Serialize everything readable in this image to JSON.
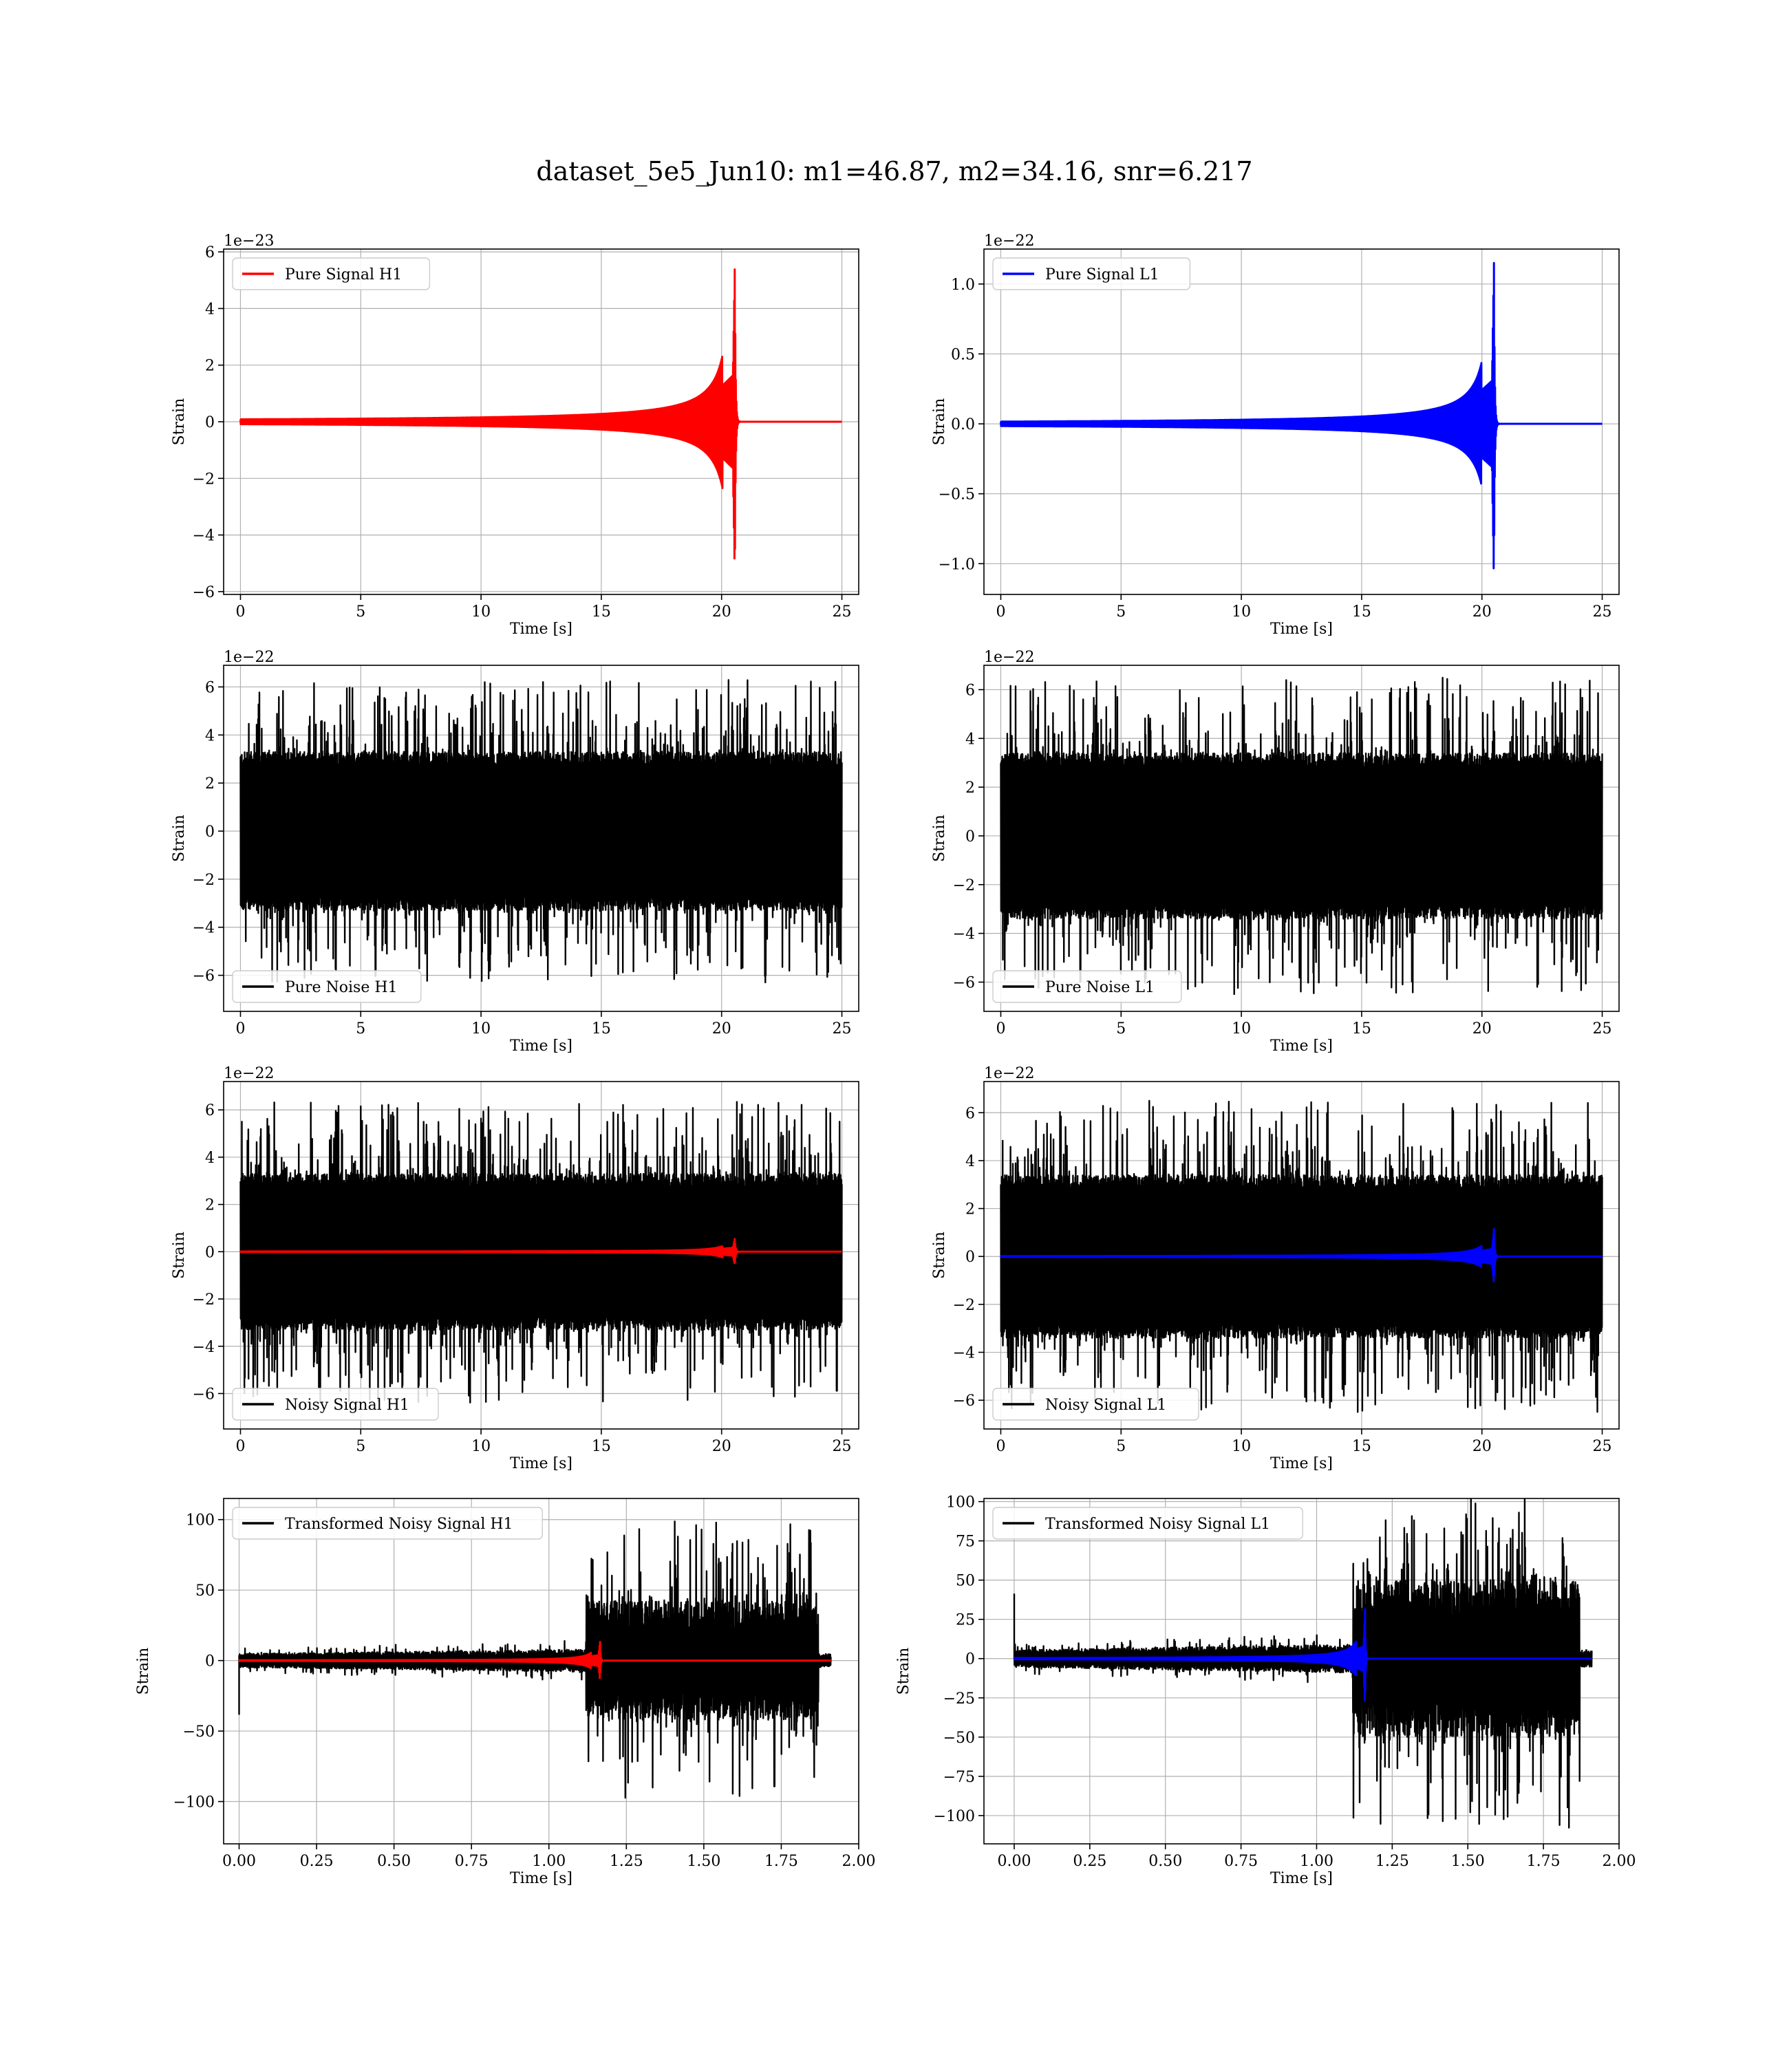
{
  "figure": {
    "title": "dataset_5e5_Jun10: m1=46.87, m2=34.16, snr=6.217"
  },
  "chart_data": [
    {
      "type": "line",
      "legend": "Pure Signal H1",
      "legend_position": "upper left",
      "xlabel": "Time [s]",
      "ylabel": "Strain",
      "offset_text": "1e−23",
      "xlim": [
        -0.7,
        25.7
      ],
      "ylim": [
        -6.1,
        6.1
      ],
      "xticks": [
        0,
        5,
        10,
        15,
        20,
        25
      ],
      "xtick_labels": [
        "0",
        "5",
        "10",
        "15",
        "20",
        "25"
      ],
      "yticks": [
        -6,
        -4,
        -2,
        0,
        2,
        4,
        6
      ],
      "ytick_labels": [
        "−6",
        "−4",
        "−2",
        "0",
        "2",
        "4",
        "6"
      ],
      "grid": true,
      "series": [
        {
          "name": "Pure Signal H1",
          "color": "#ff0000",
          "kind": "chirp",
          "t_start": 0,
          "t_merge": 20.55,
          "t_end": 25,
          "peak": 5.6,
          "plateau": 1.7,
          "noise": 0
        }
      ]
    },
    {
      "type": "line",
      "legend": "Pure Signal L1",
      "legend_position": "upper left",
      "xlabel": "Time [s]",
      "ylabel": "Strain",
      "offset_text": "1e−22",
      "xlim": [
        -0.7,
        25.7
      ],
      "ylim": [
        -1.22,
        1.25
      ],
      "xticks": [
        0,
        5,
        10,
        15,
        20,
        25
      ],
      "xtick_labels": [
        "0",
        "5",
        "10",
        "15",
        "20",
        "25"
      ],
      "yticks": [
        -1.0,
        -0.5,
        0.0,
        0.5,
        1.0
      ],
      "ytick_labels": [
        "−1.0",
        "−0.5",
        "0.0",
        "0.5",
        "1.0"
      ],
      "grid": true,
      "series": [
        {
          "name": "Pure Signal L1",
          "color": "#0000ff",
          "kind": "chirp",
          "t_start": 0,
          "t_merge": 20.5,
          "t_end": 25,
          "peak": 1.15,
          "plateau": 0.32,
          "noise": 0
        }
      ]
    },
    {
      "type": "line",
      "legend": "Pure Noise H1",
      "legend_position": "lower left",
      "xlabel": "Time [s]",
      "ylabel": "Strain",
      "offset_text": "1e−22",
      "xlim": [
        -0.7,
        25.7
      ],
      "ylim": [
        -7.5,
        6.9
      ],
      "xticks": [
        0,
        5,
        10,
        15,
        20,
        25
      ],
      "xtick_labels": [
        "0",
        "5",
        "10",
        "15",
        "20",
        "25"
      ],
      "yticks": [
        -6,
        -4,
        -2,
        0,
        2,
        4,
        6
      ],
      "ytick_labels": [
        "−6",
        "−4",
        "−2",
        "0",
        "2",
        "4",
        "6"
      ],
      "grid": true,
      "series": [
        {
          "name": "Pure Noise H1",
          "color": "#000000",
          "kind": "noise",
          "t_start": 0,
          "t_end": 25,
          "core": 3.3,
          "spike_max": 6.3
        }
      ]
    },
    {
      "type": "line",
      "legend": "Pure Noise L1",
      "legend_position": "lower left",
      "xlabel": "Time [s]",
      "ylabel": "Strain",
      "offset_text": "1e−22",
      "xlim": [
        -0.7,
        25.7
      ],
      "ylim": [
        -7.2,
        7.0
      ],
      "xticks": [
        0,
        5,
        10,
        15,
        20,
        25
      ],
      "xtick_labels": [
        "0",
        "5",
        "10",
        "15",
        "20",
        "25"
      ],
      "yticks": [
        -6,
        -4,
        -2,
        0,
        2,
        4,
        6
      ],
      "ytick_labels": [
        "−6",
        "−4",
        "−2",
        "0",
        "2",
        "4",
        "6"
      ],
      "grid": true,
      "series": [
        {
          "name": "Pure Noise L1",
          "color": "#000000",
          "kind": "noise",
          "t_start": 0,
          "t_end": 25,
          "core": 3.4,
          "spike_max": 6.5
        }
      ]
    },
    {
      "type": "line",
      "legend": "Noisy Signal H1",
      "legend_position": "lower left",
      "xlabel": "Time [s]",
      "ylabel": "Strain",
      "offset_text": "1e−22",
      "xlim": [
        -0.7,
        25.7
      ],
      "ylim": [
        -7.5,
        7.2
      ],
      "xticks": [
        0,
        5,
        10,
        15,
        20,
        25
      ],
      "xtick_labels": [
        "0",
        "5",
        "10",
        "15",
        "20",
        "25"
      ],
      "yticks": [
        -6,
        -4,
        -2,
        0,
        2,
        4,
        6
      ],
      "ytick_labels": [
        "−6",
        "−4",
        "−2",
        "0",
        "2",
        "4",
        "6"
      ],
      "grid": true,
      "series": [
        {
          "name": "Noisy Signal H1",
          "color": "#000000",
          "kind": "noise",
          "t_start": 0,
          "t_end": 25,
          "core": 3.3,
          "spike_max": 6.4
        },
        {
          "name": "Pure Signal H1",
          "color": "#ff0000",
          "kind": "chirp",
          "t_start": 0,
          "t_merge": 20.55,
          "t_end": 25,
          "peak": 0.56,
          "plateau": 0.17,
          "noise": 0
        }
      ]
    },
    {
      "type": "line",
      "legend": "Noisy Signal L1",
      "legend_position": "lower left",
      "xlabel": "Time [s]",
      "ylabel": "Strain",
      "offset_text": "1e−22",
      "xlim": [
        -0.7,
        25.7
      ],
      "ylim": [
        -7.2,
        7.3
      ],
      "xticks": [
        0,
        5,
        10,
        15,
        20,
        25
      ],
      "xtick_labels": [
        "0",
        "5",
        "10",
        "15",
        "20",
        "25"
      ],
      "yticks": [
        -6,
        -4,
        -2,
        0,
        2,
        4,
        6
      ],
      "ytick_labels": [
        "−6",
        "−4",
        "−2",
        "0",
        "2",
        "4",
        "6"
      ],
      "grid": true,
      "series": [
        {
          "name": "Noisy Signal L1",
          "color": "#000000",
          "kind": "noise",
          "t_start": 0,
          "t_end": 25,
          "core": 3.4,
          "spike_max": 6.5
        },
        {
          "name": "Pure Signal L1",
          "color": "#0000ff",
          "kind": "chirp",
          "t_start": 0,
          "t_merge": 20.5,
          "t_end": 25,
          "peak": 1.15,
          "plateau": 0.32,
          "noise": 0
        }
      ]
    },
    {
      "type": "line",
      "legend": "Transformed Noisy Signal H1",
      "legend_position": "upper left",
      "xlabel": "Time [s]",
      "ylabel": "Strain",
      "offset_text": "",
      "xlim": [
        -0.05,
        2.0
      ],
      "ylim": [
        -130,
        115
      ],
      "xticks": [
        0.0,
        0.25,
        0.5,
        0.75,
        1.0,
        1.25,
        1.5,
        1.75,
        2.0
      ],
      "xtick_labels": [
        "0.00",
        "0.25",
        "0.50",
        "0.75",
        "1.00",
        "1.25",
        "1.50",
        "1.75",
        "2.00"
      ],
      "yticks": [
        -100,
        -50,
        0,
        50,
        100
      ],
      "ytick_labels": [
        "−100",
        "−50",
        "0",
        "50",
        "100"
      ],
      "grid": true,
      "series": [
        {
          "name": "Transformed Noisy Signal H1",
          "color": "#000000",
          "kind": "transformed",
          "t_start": 0,
          "t_step": 1.12,
          "t_end": 1.87,
          "t_tail": 1.91,
          "low": 8,
          "high": 42,
          "spike_max": 100,
          "start_spike": -38
        },
        {
          "name": "Pure Signal H1",
          "color": "#ff0000",
          "kind": "chirp",
          "t_start": 0,
          "t_merge": 1.165,
          "t_end": 1.91,
          "peak": 14,
          "plateau": 4,
          "noise": 0
        }
      ]
    },
    {
      "type": "line",
      "legend": "Transformed Noisy Signal L1",
      "legend_position": "upper left",
      "xlabel": "Time [s]",
      "ylabel": "Strain",
      "offset_text": "",
      "xlim": [
        -0.1,
        2.0
      ],
      "ylim": [
        -118,
        102
      ],
      "xticks": [
        0.0,
        0.25,
        0.5,
        0.75,
        1.0,
        1.25,
        1.5,
        1.75,
        2.0
      ],
      "xtick_labels": [
        "0.00",
        "0.25",
        "0.50",
        "0.75",
        "1.00",
        "1.25",
        "1.50",
        "1.75",
        "2.00"
      ],
      "yticks": [
        -100,
        -75,
        -50,
        -25,
        0,
        25,
        50,
        75,
        100
      ],
      "ytick_labels": [
        "−100",
        "−75",
        "−50",
        "−25",
        "0",
        "25",
        "50",
        "75",
        "100"
      ],
      "grid": true,
      "series": [
        {
          "name": "Transformed Noisy Signal L1",
          "color": "#000000",
          "kind": "transformed",
          "t_start": 0,
          "t_step": 1.12,
          "t_end": 1.87,
          "t_tail": 1.91,
          "low": 9,
          "high": 50,
          "spike_max": 108,
          "start_spike": 41
        },
        {
          "name": "Pure Signal L1",
          "color": "#0000ff",
          "kind": "chirp",
          "t_start": 0,
          "t_merge": 1.16,
          "t_end": 1.91,
          "peak": 32,
          "plateau": 8,
          "noise": 0
        }
      ]
    }
  ]
}
